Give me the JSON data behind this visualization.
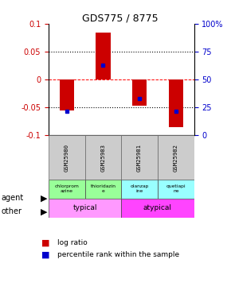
{
  "title": "GDS775 / 8775",
  "samples": [
    "GSM25980",
    "GSM25983",
    "GSM25981",
    "GSM25982"
  ],
  "log_ratios": [
    -0.055,
    0.085,
    -0.047,
    -0.085
  ],
  "percentile_ranks_raw": [
    22,
    63,
    33,
    22
  ],
  "ylim": [
    -0.1,
    0.1
  ],
  "yticks_left": [
    -0.1,
    -0.05,
    0,
    0.05,
    0.1
  ],
  "yticks_right_vals": [
    0,
    25,
    50,
    75,
    100
  ],
  "bar_color": "#cc0000",
  "percentile_color": "#0000cc",
  "agent_labels": [
    "chlorprom\nazine",
    "thioridazin\ne",
    "olanzap\nine",
    "quetiapi\nne"
  ],
  "agent_colors_typical": "#99ff99",
  "agent_colors_atypical": "#99ffff",
  "agent_typical_count": 2,
  "other_labels": [
    "typical",
    "atypical"
  ],
  "other_color_typical": "#ff99ff",
  "other_color_atypical": "#ff44ff",
  "ylabel_left_color": "#cc0000",
  "ylabel_right_color": "#0000cc",
  "legend_red": "log ratio",
  "legend_blue": "percentile rank within the sample",
  "bg": "#ffffff",
  "sample_bg": "#cccccc",
  "sample_border": "#888888"
}
